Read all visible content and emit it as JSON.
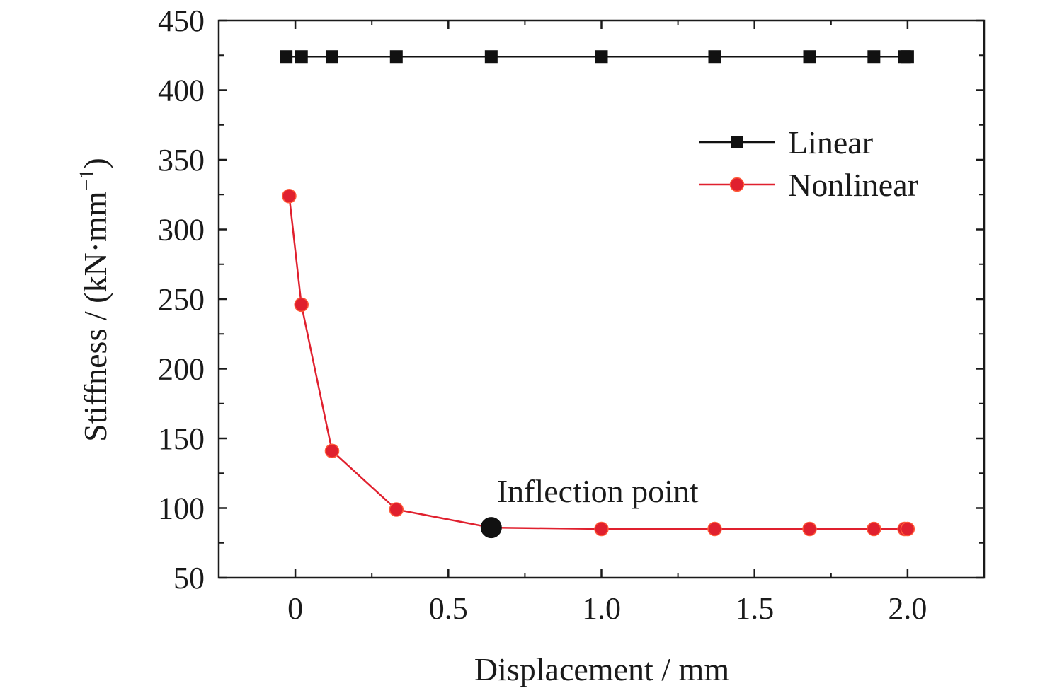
{
  "chart_data": {
    "type": "line",
    "xlabel": "Displacement / mm",
    "ylabel": "Stiffness / (kN·mm",
    "ylabel_sup": "−1",
    "ylabel_close": ")",
    "xlim": [
      -0.25,
      2.25
    ],
    "ylim": [
      50,
      450
    ],
    "x_ticks": [
      0,
      0.5,
      1.0,
      1.5,
      2.0
    ],
    "x_tick_labels": [
      "0",
      "0.5",
      "1.0",
      "1.5",
      "2.0"
    ],
    "y_ticks": [
      50,
      100,
      150,
      200,
      250,
      300,
      350,
      400,
      450
    ],
    "y_tick_labels": [
      "50",
      "100",
      "150",
      "200",
      "250",
      "300",
      "350",
      "400",
      "450"
    ],
    "legend_position": "top-right",
    "grid": false,
    "series": [
      {
        "name": "Linear",
        "color": "#111111",
        "marker": "square",
        "x": [
          -0.03,
          0.02,
          0.12,
          0.33,
          0.64,
          1.0,
          1.37,
          1.68,
          1.89,
          1.99,
          2.0
        ],
        "y": [
          424,
          424,
          424,
          424,
          424,
          424,
          424,
          424,
          424,
          424,
          424
        ]
      },
      {
        "name": "Nonlinear",
        "color": "#e0202e",
        "marker": "circle",
        "x": [
          -0.02,
          0.02,
          0.12,
          0.33,
          0.64,
          1.0,
          1.37,
          1.68,
          1.89,
          1.99,
          2.0
        ],
        "y": [
          324,
          246,
          141,
          99,
          86,
          85,
          85,
          85,
          85,
          85,
          85
        ]
      }
    ],
    "annotations": [
      {
        "text": "Inflection point",
        "x": 0.64,
        "y": 86
      }
    ]
  }
}
